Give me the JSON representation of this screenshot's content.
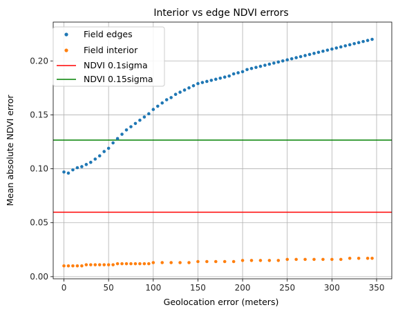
{
  "chart_data": {
    "type": "scatter",
    "title": "Interior vs edge NDVI errors",
    "xlabel": "Geolocation error (meters)",
    "ylabel": "Mean absolute NDVI error",
    "xlim": [
      -12,
      367
    ],
    "ylim": [
      -0.002,
      0.236
    ],
    "x_ticks": [
      0,
      50,
      100,
      150,
      200,
      250,
      300,
      350
    ],
    "y_ticks": [
      0.0,
      0.05,
      0.1,
      0.15,
      0.2
    ],
    "y_tick_labels": [
      "0.00",
      "0.05",
      "0.10",
      "0.15",
      "0.20"
    ],
    "grid": true,
    "legend_position": "top-left",
    "series": [
      {
        "name": "Field edges",
        "kind": "scatter",
        "color": "#1f77b4",
        "x": [
          0,
          5,
          10,
          15,
          20,
          25,
          30,
          35,
          40,
          45,
          50,
          55,
          60,
          65,
          70,
          75,
          80,
          85,
          90,
          95,
          100,
          105,
          110,
          115,
          120,
          125,
          130,
          135,
          140,
          145,
          150,
          155,
          160,
          165,
          170,
          175,
          180,
          185,
          190,
          195,
          200,
          205,
          210,
          215,
          220,
          225,
          230,
          235,
          240,
          245,
          250,
          255,
          260,
          265,
          270,
          275,
          280,
          285,
          290,
          295,
          300,
          305,
          310,
          315,
          320,
          325,
          330,
          335,
          340,
          345
        ],
        "y": [
          0.097,
          0.096,
          0.099,
          0.101,
          0.102,
          0.104,
          0.106,
          0.109,
          0.112,
          0.116,
          0.119,
          0.124,
          0.128,
          0.132,
          0.136,
          0.139,
          0.142,
          0.145,
          0.148,
          0.151,
          0.155,
          0.158,
          0.161,
          0.164,
          0.166,
          0.169,
          0.171,
          0.173,
          0.175,
          0.177,
          0.179,
          0.18,
          0.181,
          0.182,
          0.183,
          0.184,
          0.185,
          0.186,
          0.188,
          0.189,
          0.19,
          0.192,
          0.193,
          0.194,
          0.195,
          0.196,
          0.197,
          0.198,
          0.199,
          0.2,
          0.201,
          0.202,
          0.203,
          0.204,
          0.205,
          0.206,
          0.207,
          0.208,
          0.209,
          0.21,
          0.211,
          0.212,
          0.213,
          0.214,
          0.215,
          0.216,
          0.217,
          0.218,
          0.219,
          0.22
        ]
      },
      {
        "name": "Field interior",
        "kind": "scatter",
        "color": "#ff7f0e",
        "x": [
          0,
          5,
          10,
          15,
          20,
          25,
          30,
          35,
          40,
          45,
          50,
          55,
          60,
          65,
          70,
          75,
          80,
          85,
          90,
          95,
          100,
          110,
          120,
          130,
          140,
          150,
          160,
          170,
          180,
          190,
          200,
          210,
          220,
          230,
          240,
          250,
          260,
          270,
          280,
          290,
          300,
          310,
          320,
          330,
          340,
          345
        ],
        "y": [
          0.01,
          0.01,
          0.01,
          0.01,
          0.01,
          0.011,
          0.011,
          0.011,
          0.011,
          0.011,
          0.011,
          0.011,
          0.012,
          0.012,
          0.012,
          0.012,
          0.012,
          0.012,
          0.012,
          0.012,
          0.013,
          0.013,
          0.013,
          0.013,
          0.013,
          0.014,
          0.014,
          0.014,
          0.014,
          0.014,
          0.015,
          0.015,
          0.015,
          0.015,
          0.015,
          0.016,
          0.016,
          0.016,
          0.016,
          0.016,
          0.016,
          0.016,
          0.017,
          0.017,
          0.017,
          0.017
        ]
      },
      {
        "name": "NDVI 0.1sigma",
        "kind": "hline",
        "color": "#ff0000",
        "y": 0.0597
      },
      {
        "name": "NDVI 0.15sigma",
        "kind": "hline",
        "color": "#008000",
        "y": 0.1266
      }
    ]
  }
}
